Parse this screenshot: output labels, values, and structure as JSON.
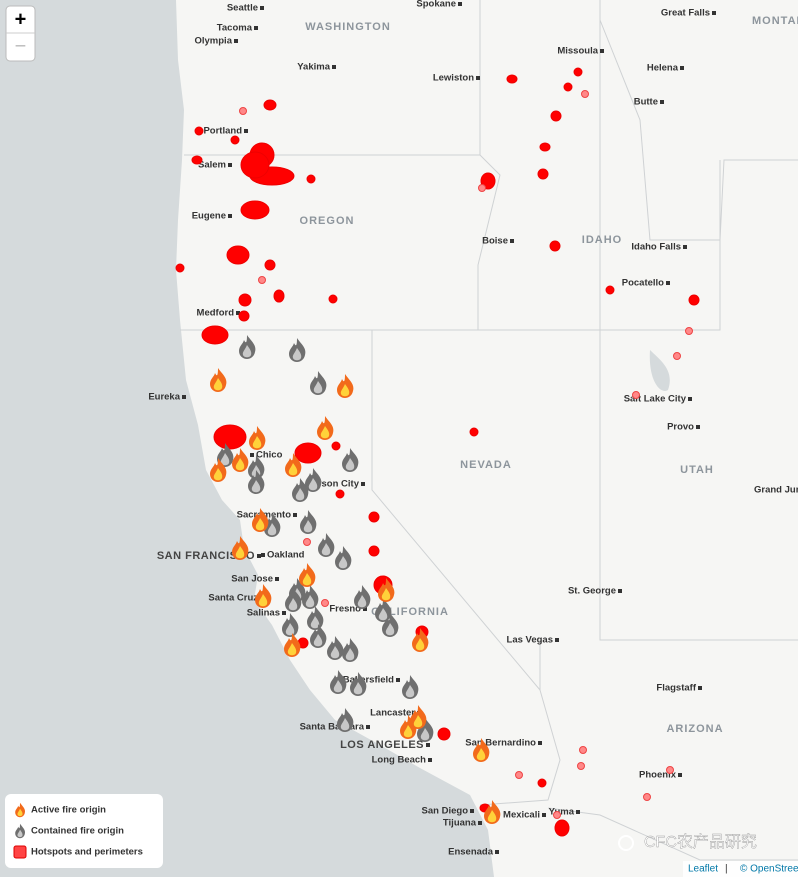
{
  "zoom": {
    "in": "+",
    "out": "−"
  },
  "cities": [
    "Seattle",
    "Spokane",
    "Great Falls",
    "Tacoma",
    "Olympia",
    "Yakima",
    "Missoula",
    "Lewiston",
    "Helena",
    "Portland",
    "Butte",
    "Salem",
    "Eugene",
    "Boise",
    "Idaho Falls",
    "Pocatello",
    "Medford",
    "Eureka",
    "Salt Lake City",
    "Provo",
    "Chico",
    "Carson City",
    "Grand Junction",
    "Sacramento",
    "SAN FRANCISCO",
    "Oakland",
    "San Jose",
    "Santa Cruz",
    "Salinas",
    "Fresno",
    "Las Vegas",
    "St. George",
    "Flagstaff",
    "Bakersfield",
    "Lancaster",
    "Santa Barbara",
    "LOS ANGELES",
    "San Bernardino",
    "Long Beach",
    "Phoenix",
    "San Diego",
    "Tijuana",
    "Mexicali",
    "Yuma",
    "Ensenada"
  ],
  "regions": [
    "WASHINGTON",
    "MONTANA",
    "OREGON",
    "IDAHO",
    "NEVADA",
    "UTAH",
    "CALIFORNIA",
    "ARIZONA"
  ],
  "legend": [
    "Active fire origin",
    "Contained fire origin",
    "Hotspots and perimeters"
  ],
  "attribution": {
    "leaflet": "Leaflet",
    "separator": "|",
    "osm": "© OpenStreetMap"
  },
  "watermark": "CFC农产品研究"
}
